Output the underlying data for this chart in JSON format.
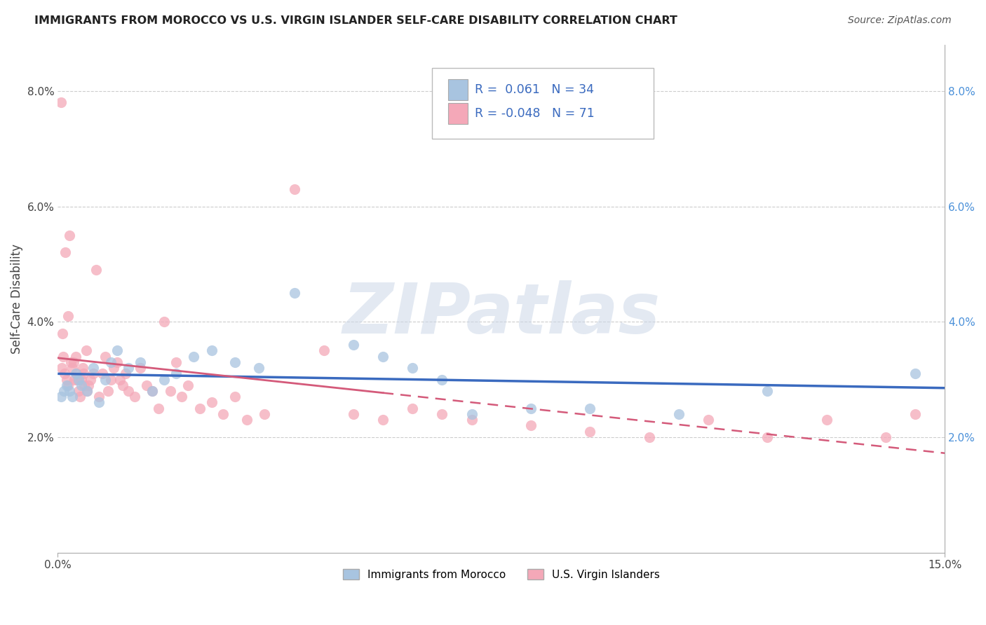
{
  "title": "IMMIGRANTS FROM MOROCCO VS U.S. VIRGIN ISLANDER SELF-CARE DISABILITY CORRELATION CHART",
  "source": "Source: ZipAtlas.com",
  "ylabel": "Self-Care Disability",
  "xlim": [
    0.0,
    15.0
  ],
  "ylim": [
    0.0,
    8.8
  ],
  "yticks": [
    2.0,
    4.0,
    6.0,
    8.0
  ],
  "legend_label1": "Immigrants from Morocco",
  "legend_label2": "U.S. Virgin Islanders",
  "r1": 0.061,
  "n1": 34,
  "r2": -0.048,
  "n2": 71,
  "color1": "#a8c4e0",
  "color2": "#f4a8b8",
  "line_color1": "#3a6abf",
  "line_color2": "#d45a7a",
  "watermark": "ZIPatlas",
  "background_color": "#ffffff",
  "scatter1_x": [
    0.05,
    0.1,
    0.15,
    0.2,
    0.25,
    0.3,
    0.35,
    0.4,
    0.5,
    0.6,
    0.7,
    0.8,
    0.9,
    1.0,
    1.2,
    1.4,
    1.6,
    1.8,
    2.0,
    2.3,
    2.6,
    3.0,
    3.4,
    4.0,
    5.0,
    5.5,
    6.0,
    6.5,
    7.0,
    8.0,
    9.0,
    10.5,
    12.0,
    14.5
  ],
  "scatter1_y": [
    2.7,
    2.8,
    2.9,
    2.8,
    2.7,
    3.1,
    3.0,
    2.9,
    2.8,
    3.2,
    2.6,
    3.0,
    3.3,
    3.5,
    3.2,
    3.3,
    2.8,
    3.0,
    3.1,
    3.4,
    3.5,
    3.3,
    3.2,
    4.5,
    3.6,
    3.4,
    3.2,
    3.0,
    2.4,
    2.5,
    2.5,
    2.4,
    2.8,
    3.1
  ],
  "scatter2_x": [
    0.05,
    0.07,
    0.09,
    0.12,
    0.15,
    0.18,
    0.2,
    0.22,
    0.25,
    0.28,
    0.3,
    0.32,
    0.35,
    0.38,
    0.4,
    0.42,
    0.45,
    0.48,
    0.5,
    0.55,
    0.6,
    0.65,
    0.7,
    0.75,
    0.8,
    0.85,
    0.9,
    0.95,
    1.0,
    1.05,
    1.1,
    1.15,
    1.2,
    1.3,
    1.4,
    1.5,
    1.6,
    1.7,
    1.8,
    1.9,
    2.0,
    2.1,
    2.2,
    2.4,
    2.6,
    2.8,
    3.0,
    3.2,
    3.5,
    4.0,
    4.5,
    5.0,
    5.5,
    6.0,
    6.5,
    7.0,
    8.0,
    9.0,
    10.0,
    11.0,
    12.0,
    13.0,
    14.0,
    14.5,
    0.08,
    0.13,
    0.17,
    0.27,
    0.33,
    0.43,
    0.52
  ],
  "scatter2_y": [
    7.8,
    3.2,
    3.4,
    3.1,
    3.0,
    2.9,
    5.5,
    3.3,
    3.2,
    3.0,
    3.4,
    3.1,
    2.8,
    2.7,
    3.0,
    3.2,
    2.9,
    3.5,
    2.8,
    3.0,
    3.1,
    4.9,
    2.7,
    3.1,
    3.4,
    2.8,
    3.0,
    3.2,
    3.3,
    3.0,
    2.9,
    3.1,
    2.8,
    2.7,
    3.2,
    2.9,
    2.8,
    2.5,
    4.0,
    2.8,
    3.3,
    2.7,
    2.9,
    2.5,
    2.6,
    2.4,
    2.7,
    2.3,
    2.4,
    6.3,
    3.5,
    2.4,
    2.3,
    2.5,
    2.4,
    2.3,
    2.2,
    2.1,
    2.0,
    2.3,
    2.0,
    2.3,
    2.0,
    2.4,
    3.8,
    5.2,
    4.1,
    3.3,
    3.0,
    3.1,
    2.9
  ]
}
